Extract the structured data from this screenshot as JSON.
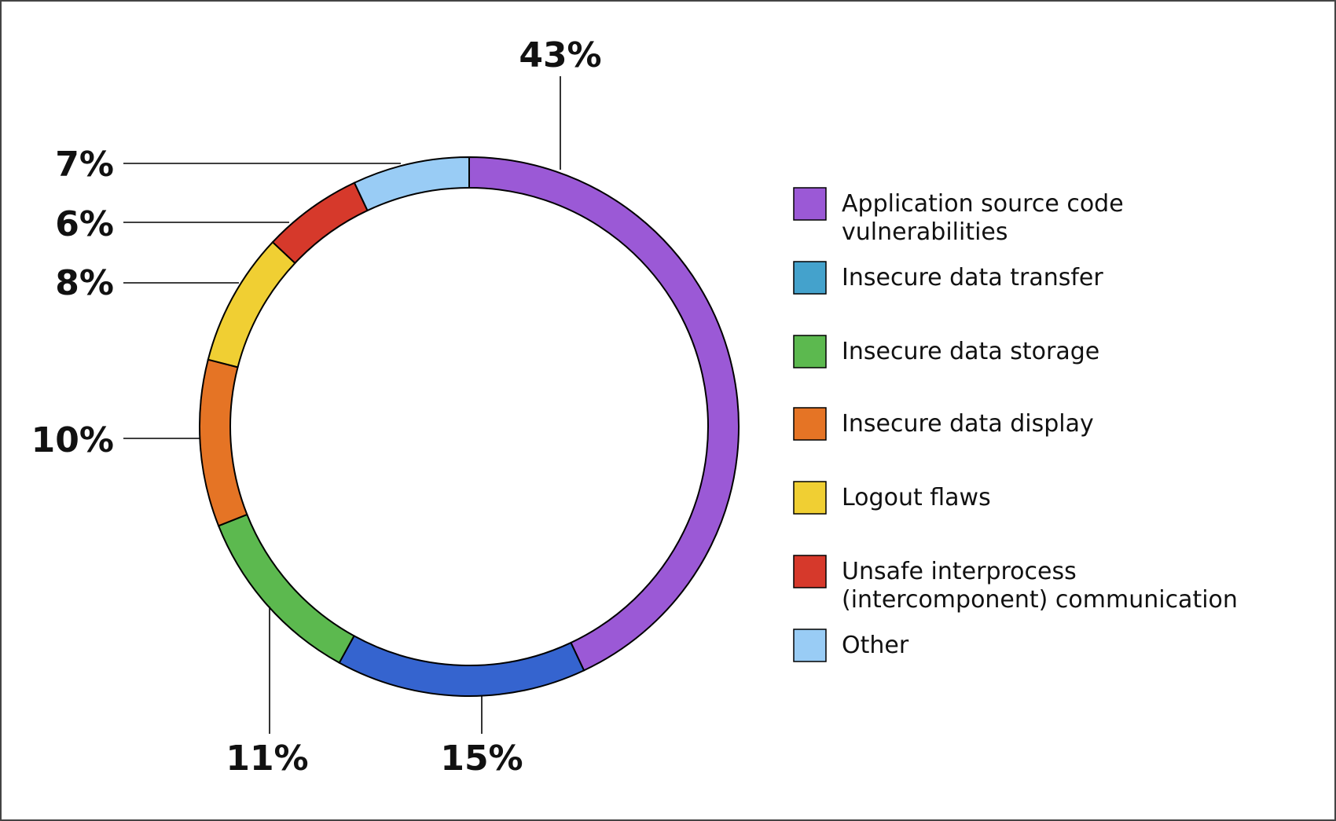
{
  "chart_data": {
    "type": "pie",
    "style": "donut",
    "slices": [
      {
        "label": "Application source code vulnerabilities",
        "value": 43,
        "value_label": "43%",
        "color": "#9b59d6"
      },
      {
        "label": "Insecure data transfer",
        "value": 15,
        "value_label": "15%",
        "color": "#3564cf",
        "legend_color": "#44a2cc"
      },
      {
        "label": "Insecure data storage",
        "value": 11,
        "value_label": "11%",
        "color": "#5cb94f"
      },
      {
        "label": "Insecure data display",
        "value": 10,
        "value_label": "10%",
        "color": "#e57425"
      },
      {
        "label": "Logout flaws",
        "value": 8,
        "value_label": "8%",
        "color": "#f0cf33"
      },
      {
        "label": "Unsafe interprocess (intercomponent) communication",
        "value": 6,
        "value_label": "6%",
        "color": "#d6392b"
      },
      {
        "label": "Other",
        "value": 7,
        "value_label": "7%",
        "color": "#99ccf5"
      }
    ],
    "legend_placement": "right",
    "legend": [
      {
        "lines": [
          "Application source code",
          "vulnerabilities"
        ]
      },
      {
        "lines": [
          "Insecure data transfer"
        ]
      },
      {
        "lines": [
          "Insecure data storage"
        ]
      },
      {
        "lines": [
          "Insecure data display"
        ]
      },
      {
        "lines": [
          "Logout flaws"
        ]
      },
      {
        "lines": [
          "Unsafe interprocess",
          "(intercomponent) communication"
        ]
      },
      {
        "lines": [
          "Other"
        ]
      }
    ]
  }
}
